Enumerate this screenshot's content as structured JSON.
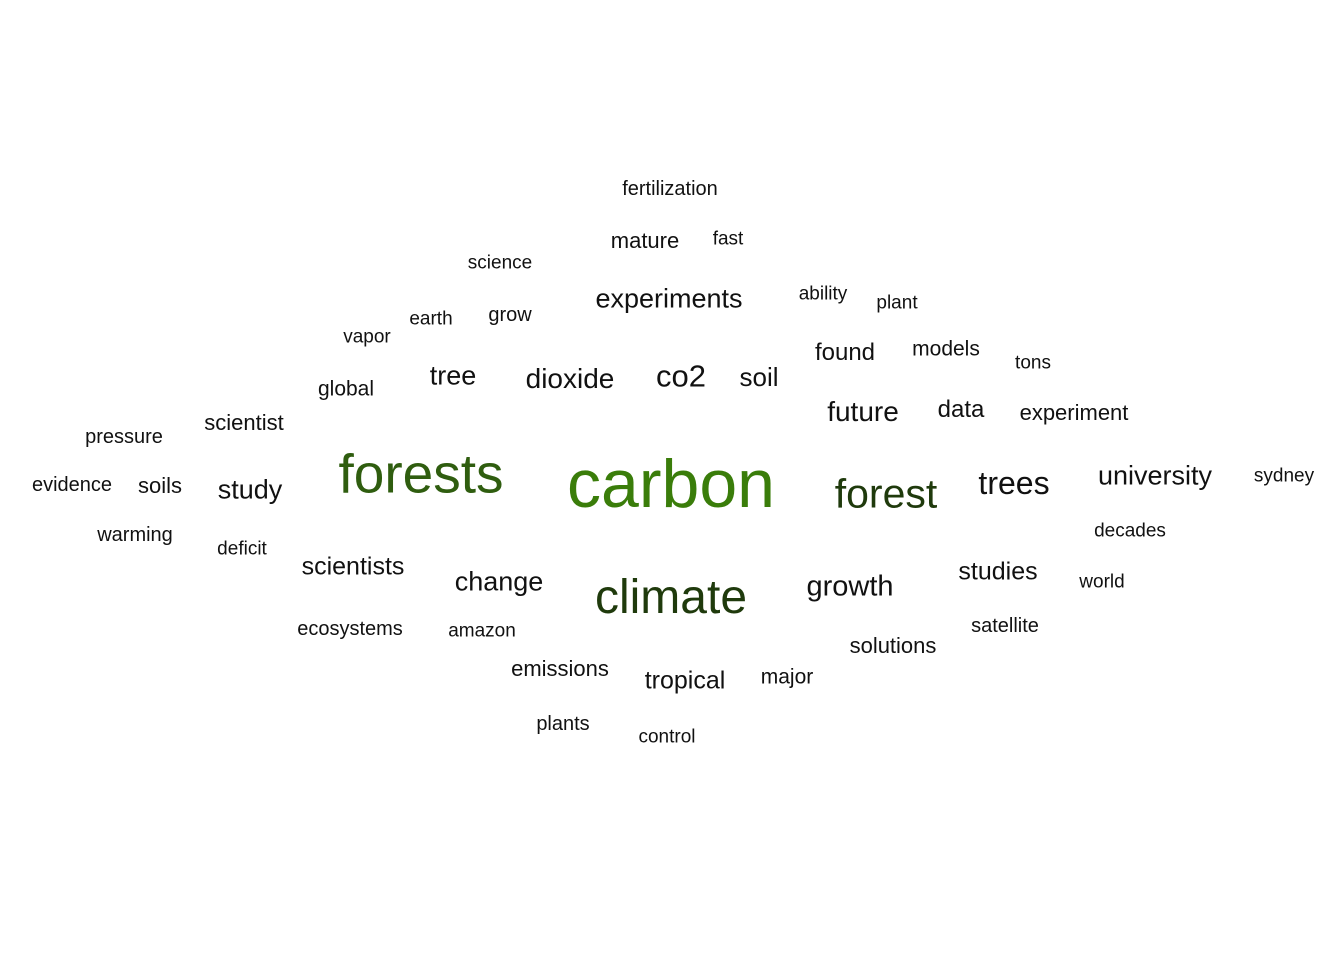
{
  "chart_data": {
    "type": "wordcloud",
    "colors": {
      "top": "#3a7d0a",
      "high": "#2f5d0f",
      "mid": "#1f3a0c",
      "low": "#111111"
    },
    "words": [
      {
        "text": "carbon",
        "weight": 100
      },
      {
        "text": "forests",
        "weight": 80
      },
      {
        "text": "climate",
        "weight": 68
      },
      {
        "text": "forest",
        "weight": 58
      },
      {
        "text": "trees",
        "weight": 44
      },
      {
        "text": "co2",
        "weight": 42
      },
      {
        "text": "growth",
        "weight": 39
      },
      {
        "text": "future",
        "weight": 37
      },
      {
        "text": "dioxide",
        "weight": 37
      },
      {
        "text": "study",
        "weight": 36
      },
      {
        "text": "tree",
        "weight": 35
      },
      {
        "text": "experiments",
        "weight": 35
      },
      {
        "text": "change",
        "weight": 35
      },
      {
        "text": "university",
        "weight": 35
      },
      {
        "text": "soil",
        "weight": 34
      },
      {
        "text": "tropical",
        "weight": 33
      },
      {
        "text": "studies",
        "weight": 32
      },
      {
        "text": "scientists",
        "weight": 32
      },
      {
        "text": "found",
        "weight": 31
      },
      {
        "text": "data",
        "weight": 31
      },
      {
        "text": "scientist",
        "weight": 28
      },
      {
        "text": "experiment",
        "weight": 28
      },
      {
        "text": "soils",
        "weight": 27
      },
      {
        "text": "mature",
        "weight": 27
      },
      {
        "text": "emissions",
        "weight": 27
      },
      {
        "text": "solutions",
        "weight": 27
      },
      {
        "text": "models",
        "weight": 26
      },
      {
        "text": "global",
        "weight": 26
      },
      {
        "text": "major",
        "weight": 26
      },
      {
        "text": "grow",
        "weight": 25
      },
      {
        "text": "warming",
        "weight": 24
      },
      {
        "text": "evidence",
        "weight": 24
      },
      {
        "text": "satellite",
        "weight": 24
      },
      {
        "text": "plants",
        "weight": 24
      },
      {
        "text": "ecosystems",
        "weight": 24
      },
      {
        "text": "fertilization",
        "weight": 24
      },
      {
        "text": "pressure",
        "weight": 24
      },
      {
        "text": "decades",
        "weight": 23
      },
      {
        "text": "amazon",
        "weight": 23
      },
      {
        "text": "science",
        "weight": 23
      },
      {
        "text": "sydney",
        "weight": 23
      },
      {
        "text": "earth",
        "weight": 23
      },
      {
        "text": "vapor",
        "weight": 23
      },
      {
        "text": "control",
        "weight": 23
      },
      {
        "text": "deficit",
        "weight": 23
      },
      {
        "text": "world",
        "weight": 23
      },
      {
        "text": "tons",
        "weight": 23
      },
      {
        "text": "plant",
        "weight": 23
      },
      {
        "text": "ability",
        "weight": 23
      },
      {
        "text": "fast",
        "weight": 23
      }
    ]
  }
}
